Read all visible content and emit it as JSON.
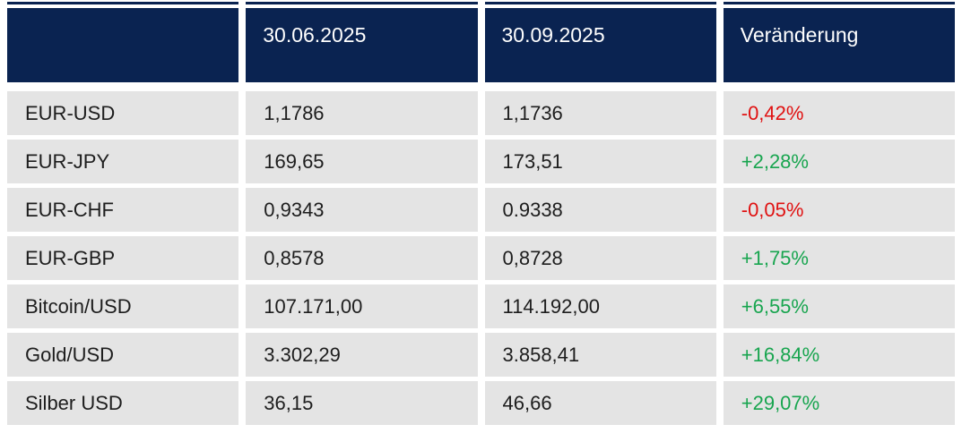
{
  "chart_data": {
    "type": "table",
    "title": "",
    "columns": [
      "",
      "30.06.2025",
      "30.09.2025",
      "Veränderung"
    ],
    "rows": [
      {
        "label": "EUR-USD",
        "value_1": "1,1786",
        "value_2": "1,1736",
        "change": "-0,42%",
        "direction": "down"
      },
      {
        "label": "EUR-JPY",
        "value_1": "169,65",
        "value_2": "173,51",
        "change": "+2,28%",
        "direction": "up"
      },
      {
        "label": "EUR-CHF",
        "value_1": "0,9343",
        "value_2": "0.9338",
        "change": "-0,05%",
        "direction": "down"
      },
      {
        "label": "EUR-GBP",
        "value_1": "0,8578",
        "value_2": "0,8728",
        "change": "+1,75%",
        "direction": "up"
      },
      {
        "label": "Bitcoin/USD",
        "value_1": "107.171,00",
        "value_2": "114.192,00",
        "change": "+6,55%",
        "direction": "up"
      },
      {
        "label": "Gold/USD",
        "value_1": "3.302,29",
        "value_2": "3.858,41",
        "change": "+16,84%",
        "direction": "up"
      },
      {
        "label": "Silber USD",
        "value_1": "36,15",
        "value_2": "46,66",
        "change": "+29,07%",
        "direction": "up"
      }
    ],
    "colors": {
      "header_bg": "#0a2351",
      "row_bg": "#e4e4e4",
      "positive": "#18a54f",
      "negative": "#e01111",
      "header_text": "#ffffff",
      "body_text": "#1d1d1d"
    }
  }
}
